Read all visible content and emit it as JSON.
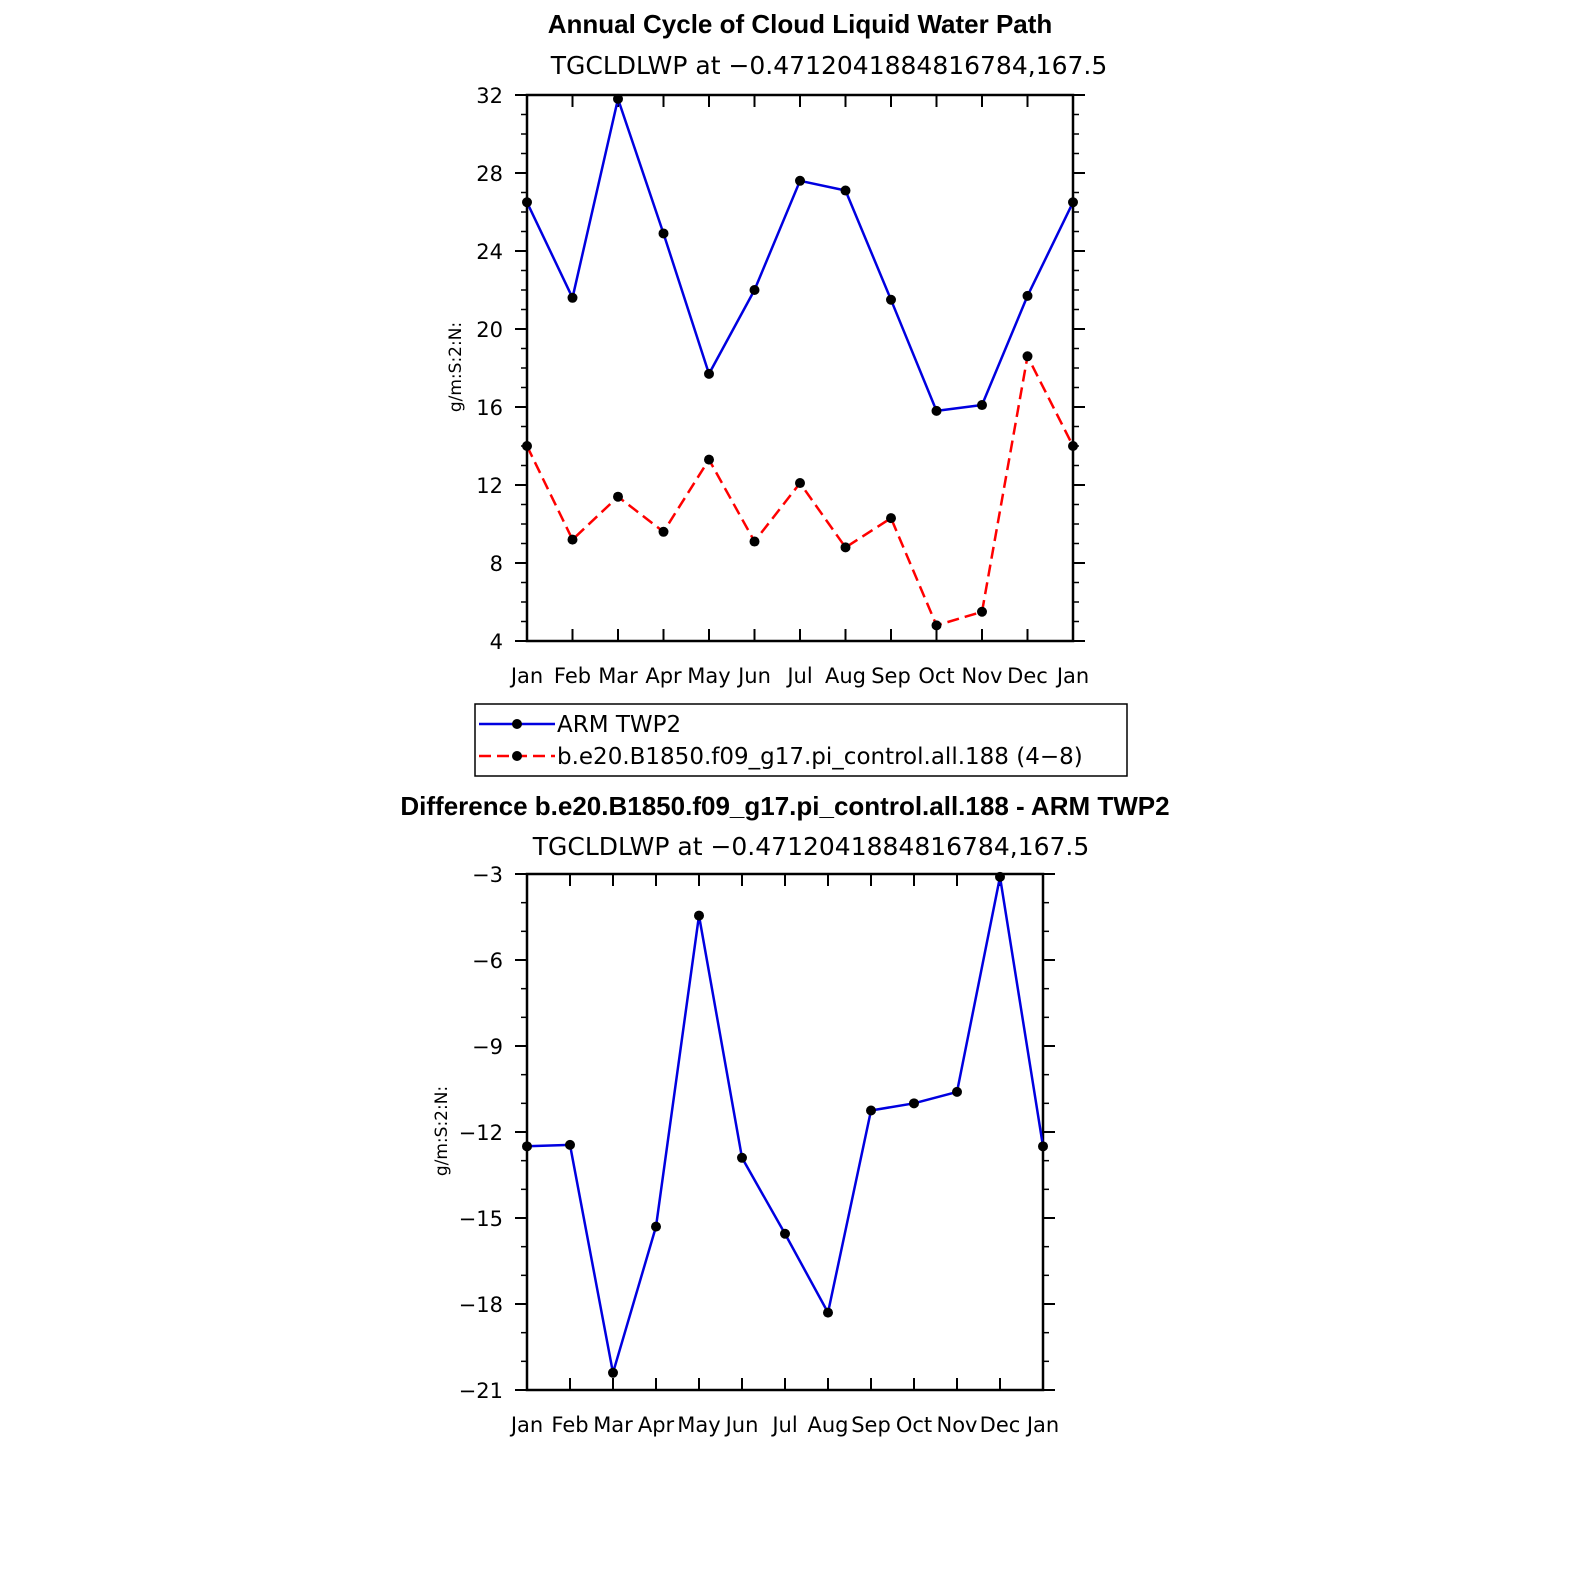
{
  "chart_data": [
    {
      "type": "line",
      "title": "Annual Cycle of Cloud Liquid Water Path",
      "subtitle": "TGCLDLWP at −0.4712041884816784,167.5",
      "xlabel": "",
      "ylabel": "g/m:S:2:N:",
      "categories": [
        "Jan",
        "Feb",
        "Mar",
        "Apr",
        "May",
        "Jun",
        "Jul",
        "Aug",
        "Sep",
        "Oct",
        "Nov",
        "Dec",
        "Jan"
      ],
      "ylim": [
        4,
        32
      ],
      "yticks": [
        "4",
        "8",
        "12",
        "16",
        "20",
        "24",
        "28",
        "32"
      ],
      "yticks_values": [
        4,
        8,
        12,
        16,
        20,
        24,
        28,
        32
      ],
      "grid": false,
      "legend_position": "below",
      "series": [
        {
          "name": "ARM TWP2",
          "color": "#0000e0",
          "dash": "solid",
          "values": [
            26.5,
            21.6,
            31.8,
            24.9,
            17.7,
            22.0,
            27.6,
            27.1,
            21.5,
            15.8,
            16.1,
            21.7,
            26.5
          ]
        },
        {
          "name": "b.e20.B1850.f09_g17.pi_control.all.188 (4−8)",
          "color": "#ff0000",
          "dash": "dashed",
          "values": [
            14.0,
            9.2,
            11.4,
            9.6,
            13.3,
            9.1,
            12.1,
            8.8,
            10.3,
            4.8,
            5.5,
            18.6,
            14.0
          ]
        }
      ]
    },
    {
      "type": "line",
      "title": "Difference b.e20.B1850.f09_g17.pi_control.all.188 - ARM TWP2",
      "subtitle": "TGCLDLWP at −0.4712041884816784,167.5",
      "xlabel": "",
      "ylabel": "g/m:S:2:N:",
      "categories": [
        "Jan",
        "Feb",
        "Mar",
        "Apr",
        "May",
        "Jun",
        "Jul",
        "Aug",
        "Sep",
        "Oct",
        "Nov",
        "Dec",
        "Jan"
      ],
      "ylim": [
        -21,
        -3
      ],
      "yticks": [
        "−3",
        "−6",
        "−9",
        "−12",
        "−15",
        "−18",
        "−21"
      ],
      "yticks_values": [
        -3,
        -6,
        -9,
        -12,
        -15,
        -18,
        -21
      ],
      "grid": false,
      "series": [
        {
          "color": "#0000e0",
          "dash": "solid",
          "values": [
            -12.5,
            -12.45,
            -20.4,
            -15.3,
            -4.45,
            -12.9,
            -15.55,
            -18.3,
            -11.25,
            -11.0,
            -10.6,
            -3.1,
            -12.5
          ]
        }
      ]
    }
  ]
}
